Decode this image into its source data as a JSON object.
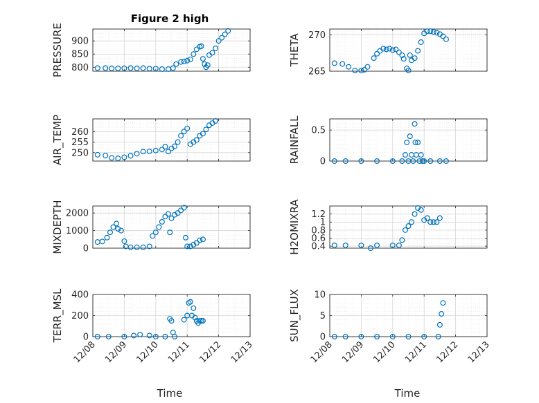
{
  "chart_data": {
    "type": "scatter",
    "title": "Figure 2 high",
    "xlabel": "Time",
    "x_ticks": [
      "12/08",
      "12/09",
      "12/10",
      "12/11",
      "12/12",
      "12/13"
    ],
    "xlim": [
      0,
      5
    ],
    "marker_color": "#0072BD",
    "subplots": [
      {
        "name": "pressure",
        "ylabel": "PRESSURE",
        "ylim": [
          785,
          945
        ],
        "yticks": [
          800,
          850,
          900
        ],
        "ytick_labels": [
          "800",
          "850",
          "900"
        ],
        "points": [
          [
            0.15,
            797
          ],
          [
            0.4,
            797
          ],
          [
            0.6,
            796
          ],
          [
            0.8,
            796
          ],
          [
            1.0,
            796
          ],
          [
            1.2,
            797
          ],
          [
            1.4,
            796
          ],
          [
            1.6,
            797
          ],
          [
            1.8,
            795
          ],
          [
            2.0,
            795
          ],
          [
            2.2,
            793
          ],
          [
            2.4,
            793
          ],
          [
            2.55,
            797
          ],
          [
            2.65,
            812
          ],
          [
            2.8,
            820
          ],
          [
            2.9,
            822
          ],
          [
            3.0,
            825
          ],
          [
            3.1,
            830
          ],
          [
            3.2,
            850
          ],
          [
            3.3,
            868
          ],
          [
            3.4,
            878
          ],
          [
            3.45,
            880
          ],
          [
            3.5,
            832
          ],
          [
            3.55,
            812
          ],
          [
            3.6,
            800
          ],
          [
            3.65,
            808
          ],
          [
            3.7,
            846
          ],
          [
            3.8,
            855
          ],
          [
            3.9,
            872
          ],
          [
            4.0,
            900
          ],
          [
            4.1,
            912
          ],
          [
            4.2,
            925
          ],
          [
            4.3,
            938
          ]
        ]
      },
      {
        "name": "theta",
        "ylabel": "THETA",
        "ylim": [
          265,
          270.8
        ],
        "yticks": [
          265,
          270
        ],
        "ytick_labels": [
          "265",
          "270"
        ],
        "points": [
          [
            0.15,
            266.1
          ],
          [
            0.4,
            266
          ],
          [
            0.6,
            265.6
          ],
          [
            0.8,
            265.1
          ],
          [
            1.0,
            265.1
          ],
          [
            1.1,
            265.2
          ],
          [
            1.2,
            265.6
          ],
          [
            1.4,
            266.8
          ],
          [
            1.5,
            267.4
          ],
          [
            1.6,
            267.8
          ],
          [
            1.7,
            268.1
          ],
          [
            1.8,
            268
          ],
          [
            1.9,
            268.1
          ],
          [
            2.0,
            267.9
          ],
          [
            2.1,
            268
          ],
          [
            2.2,
            267.6
          ],
          [
            2.3,
            267.2
          ],
          [
            2.35,
            266.7
          ],
          [
            2.45,
            265.4
          ],
          [
            2.5,
            265.1
          ],
          [
            2.55,
            267.2
          ],
          [
            2.6,
            266.5
          ],
          [
            2.7,
            266.8
          ],
          [
            2.8,
            267.8
          ],
          [
            2.9,
            269
          ],
          [
            3.0,
            270.2
          ],
          [
            3.1,
            270.5
          ],
          [
            3.2,
            270.5
          ],
          [
            3.3,
            270.4
          ],
          [
            3.4,
            270.3
          ],
          [
            3.5,
            270.1
          ],
          [
            3.6,
            269.8
          ],
          [
            3.7,
            269.4
          ]
        ]
      },
      {
        "name": "air_temp",
        "ylabel": "AIR_TEMP",
        "ylim": [
          246,
          266
        ],
        "yticks": [
          250,
          255,
          260
        ],
        "ytick_labels": [
          "250",
          "255",
          "260"
        ],
        "points": [
          [
            0.15,
            249
          ],
          [
            0.4,
            248.6
          ],
          [
            0.6,
            247.5
          ],
          [
            0.8,
            247.3
          ],
          [
            1.0,
            247.8
          ],
          [
            1.2,
            248.5
          ],
          [
            1.4,
            249.5
          ],
          [
            1.6,
            250.5
          ],
          [
            1.8,
            250.6
          ],
          [
            2.0,
            251
          ],
          [
            2.2,
            251.5
          ],
          [
            2.3,
            252.8
          ],
          [
            2.4,
            250.5
          ],
          [
            2.5,
            252
          ],
          [
            2.6,
            253
          ],
          [
            2.7,
            255
          ],
          [
            2.8,
            258
          ],
          [
            2.9,
            260
          ],
          [
            3.0,
            261.5
          ],
          [
            3.1,
            254
          ],
          [
            3.2,
            255
          ],
          [
            3.3,
            256
          ],
          [
            3.4,
            258
          ],
          [
            3.5,
            259
          ],
          [
            3.6,
            261
          ],
          [
            3.7,
            263
          ],
          [
            3.8,
            264
          ],
          [
            3.9,
            265
          ]
        ]
      },
      {
        "name": "rainfall",
        "ylabel": "RAINFALL",
        "ylim": [
          0,
          0.68
        ],
        "yticks": [
          0,
          0.5
        ],
        "ytick_labels": [
          "0",
          "0.5"
        ],
        "points": [
          [
            0.15,
            0
          ],
          [
            0.5,
            0
          ],
          [
            1.0,
            0
          ],
          [
            1.5,
            0
          ],
          [
            2.0,
            0
          ],
          [
            2.3,
            0
          ],
          [
            2.4,
            0.1
          ],
          [
            2.45,
            0.3
          ],
          [
            2.5,
            0
          ],
          [
            2.55,
            0.4
          ],
          [
            2.6,
            0.1
          ],
          [
            2.65,
            0
          ],
          [
            2.7,
            0.6
          ],
          [
            2.72,
            0.3
          ],
          [
            2.75,
            0.1
          ],
          [
            2.8,
            0.3
          ],
          [
            2.85,
            0
          ],
          [
            2.9,
            0.1
          ],
          [
            2.95,
            0
          ],
          [
            3.0,
            0
          ],
          [
            3.2,
            0
          ],
          [
            3.5,
            0
          ],
          [
            3.7,
            0
          ]
        ]
      },
      {
        "name": "mixdepth",
        "ylabel": "MIXDEPTH",
        "ylim": [
          0,
          2400
        ],
        "yticks": [
          0,
          1000,
          2000
        ],
        "ytick_labels": [
          "0",
          "1000",
          "2000"
        ],
        "points": [
          [
            0.15,
            350
          ],
          [
            0.3,
            380
          ],
          [
            0.45,
            600
          ],
          [
            0.55,
            900
          ],
          [
            0.65,
            1200
          ],
          [
            0.75,
            1400
          ],
          [
            0.8,
            1100
          ],
          [
            0.9,
            1000
          ],
          [
            1.0,
            400
          ],
          [
            1.05,
            100
          ],
          [
            1.2,
            50
          ],
          [
            1.4,
            50
          ],
          [
            1.6,
            50
          ],
          [
            1.8,
            100
          ],
          [
            1.9,
            700
          ],
          [
            2.0,
            900
          ],
          [
            2.1,
            1200
          ],
          [
            2.2,
            1500
          ],
          [
            2.3,
            1800
          ],
          [
            2.4,
            1950
          ],
          [
            2.45,
            900
          ],
          [
            2.5,
            1700
          ],
          [
            2.6,
            1900
          ],
          [
            2.7,
            2000
          ],
          [
            2.8,
            2150
          ],
          [
            2.9,
            2300
          ],
          [
            2.95,
            600
          ],
          [
            3.0,
            100
          ],
          [
            3.1,
            100
          ],
          [
            3.2,
            200
          ],
          [
            3.3,
            300
          ],
          [
            3.4,
            450
          ],
          [
            3.5,
            500
          ]
        ]
      },
      {
        "name": "h2omixra",
        "ylabel": "H2OMIXRA",
        "ylim": [
          0.35,
          1.4
        ],
        "yticks": [
          0.4,
          0.6,
          0.8,
          1,
          1.2
        ],
        "ytick_labels": [
          "0.4",
          "0.6",
          "0.8",
          "1",
          "1.2"
        ],
        "points": [
          [
            0.15,
            0.42
          ],
          [
            0.5,
            0.42
          ],
          [
            1.0,
            0.42
          ],
          [
            1.3,
            0.35
          ],
          [
            1.5,
            0.42
          ],
          [
            2.0,
            0.42
          ],
          [
            2.2,
            0.42
          ],
          [
            2.3,
            0.55
          ],
          [
            2.4,
            0.8
          ],
          [
            2.5,
            0.9
          ],
          [
            2.6,
            1.0
          ],
          [
            2.7,
            1.2
          ],
          [
            2.8,
            1.35
          ],
          [
            2.9,
            1.3
          ],
          [
            3.0,
            1.05
          ],
          [
            3.1,
            1.1
          ],
          [
            3.2,
            1.0
          ],
          [
            3.3,
            1.0
          ],
          [
            3.4,
            1.0
          ],
          [
            3.5,
            1.1
          ]
        ]
      },
      {
        "name": "terr_msl",
        "ylabel": "TERR_MSL",
        "ylim": [
          0,
          400
        ],
        "yticks": [
          0,
          200,
          400
        ],
        "ytick_labels": [
          "0",
          "200",
          "400"
        ],
        "points": [
          [
            0.15,
            0
          ],
          [
            0.5,
            0
          ],
          [
            1.0,
            0
          ],
          [
            1.3,
            10
          ],
          [
            1.5,
            20
          ],
          [
            1.8,
            10
          ],
          [
            2.0,
            0
          ],
          [
            2.3,
            0
          ],
          [
            2.45,
            170
          ],
          [
            2.5,
            150
          ],
          [
            2.55,
            40
          ],
          [
            2.6,
            0
          ],
          [
            2.9,
            160
          ],
          [
            3.0,
            200
          ],
          [
            3.05,
            320
          ],
          [
            3.1,
            330
          ],
          [
            3.15,
            200
          ],
          [
            3.2,
            270
          ],
          [
            3.25,
            180
          ],
          [
            3.3,
            150
          ],
          [
            3.35,
            130
          ],
          [
            3.4,
            150
          ],
          [
            3.45,
            150
          ],
          [
            3.5,
            150
          ]
        ]
      },
      {
        "name": "sun_flux",
        "ylabel": "SUN_FLUX",
        "ylim": [
          0,
          10
        ],
        "yticks": [
          0,
          5,
          10
        ],
        "ytick_labels": [
          "0",
          "5",
          "10"
        ],
        "points": [
          [
            0.15,
            0
          ],
          [
            0.5,
            0
          ],
          [
            1.0,
            0
          ],
          [
            1.5,
            0
          ],
          [
            2.0,
            0
          ],
          [
            2.5,
            0
          ],
          [
            3.0,
            0
          ],
          [
            3.45,
            0
          ],
          [
            3.5,
            2.8
          ],
          [
            3.55,
            5.4
          ],
          [
            3.6,
            8
          ]
        ]
      }
    ]
  }
}
